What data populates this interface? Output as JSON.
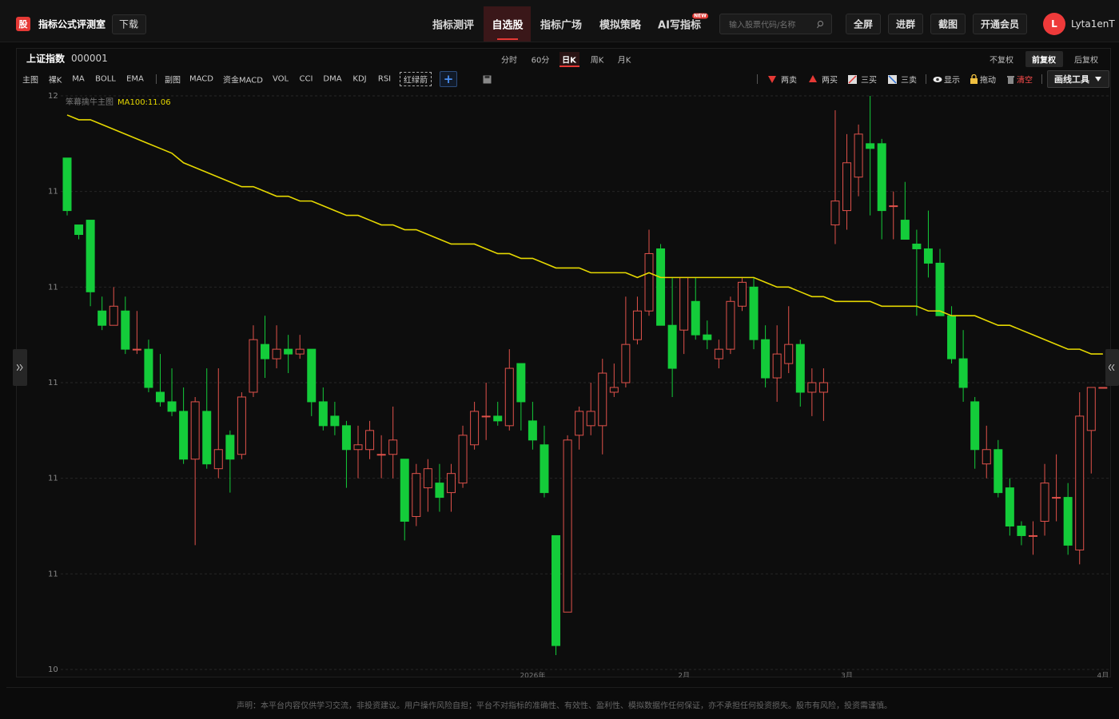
{
  "header": {
    "logo": "股",
    "app_name": "指标公式评测室",
    "download": "下载",
    "nav": [
      "指标测评",
      "自选股",
      "指标广场",
      "模拟策略",
      "AI写指标"
    ],
    "badge": "NEW",
    "search_placeholder": "输入股票代码/名称",
    "buttons": [
      "全屏",
      "进群",
      "截图",
      "开通会员"
    ],
    "avatar": "L",
    "user": "Lyta1enT"
  },
  "toolbar": {
    "symbol_name": "上证指数",
    "symbol_code": "000001",
    "periods": [
      "分时",
      "60分",
      "日K",
      "周K",
      "月K"
    ],
    "adjust": [
      "不复权",
      "前复权",
      "后复权"
    ],
    "main_label": "主图",
    "main": [
      "裸K",
      "MA",
      "BOLL",
      "EMA"
    ],
    "sub_label": "副图",
    "sub": [
      "MACD",
      "资金MACD",
      "VOL",
      "CCI",
      "DMA",
      "KDJ",
      "RSI",
      "红绿箭"
    ],
    "add": "+",
    "signals": [
      "两卖",
      "两买",
      "三买",
      "三卖"
    ],
    "tools": [
      "显示",
      "拖动",
      "清空"
    ],
    "draw_tools": "画线工具"
  },
  "chart_data": {
    "type": "candlestick",
    "indicator_name": "笨幕擒牛主图",
    "ma_label": "MA100:11.06",
    "ma_color": "#e6d800",
    "up_color": "#e0524b",
    "down_color": "#14cc3a",
    "grid": true,
    "ylim": [
      10.4,
      11.6
    ],
    "yticks": [
      {
        "value": 11.6,
        "label": "12"
      },
      {
        "value": 11.4,
        "label": "11"
      },
      {
        "value": 11.2,
        "label": "11"
      },
      {
        "value": 11.0,
        "label": "11"
      },
      {
        "value": 10.8,
        "label": "11"
      },
      {
        "value": 10.6,
        "label": "11"
      },
      {
        "value": 10.4,
        "label": "10"
      }
    ],
    "categories": [
      null,
      null,
      null,
      null,
      null,
      null,
      null,
      null,
      null,
      null,
      null,
      null,
      null,
      null,
      null,
      null,
      null,
      null,
      null,
      null,
      null,
      null,
      null,
      null,
      null,
      null,
      null,
      null,
      null,
      null,
      null,
      null,
      null,
      null,
      null,
      null,
      null,
      null,
      null,
      null,
      "2026年",
      null,
      null,
      null,
      null,
      null,
      null,
      null,
      null,
      null,
      null,
      null,
      null,
      "2月",
      null,
      null,
      null,
      null,
      null,
      null,
      null,
      null,
      null,
      null,
      null,
      null,
      null,
      "3月",
      null,
      null,
      null,
      null,
      null,
      null,
      null,
      null,
      null,
      null,
      null,
      null,
      null,
      null,
      null,
      null,
      null,
      null,
      null,
      null,
      null,
      "4月"
    ],
    "open": [
      11.47,
      11.33,
      11.34,
      11.15,
      11.12,
      11.15,
      11.07,
      11.07,
      10.98,
      10.96,
      10.94,
      10.84,
      10.94,
      10.82,
      10.89,
      10.85,
      10.98,
      11.08,
      11.05,
      11.07,
      11.06,
      11.07,
      10.96,
      10.93,
      10.91,
      10.86,
      10.86,
      10.85,
      10.85,
      10.84,
      10.72,
      10.78,
      10.79,
      10.77,
      10.79,
      10.87,
      10.93,
      10.93,
      10.91,
      11.04,
      10.92,
      10.87,
      10.68,
      10.52,
      10.89,
      10.91,
      10.91,
      10.98,
      11.0,
      11.09,
      11.15,
      11.28,
      11.12,
      11.11,
      11.17,
      11.1,
      11.05,
      11.07,
      11.16,
      11.2,
      11.09,
      11.01,
      11.04,
      11.08,
      10.98,
      10.98,
      11.33,
      11.36,
      11.43,
      11.5,
      11.5,
      11.37,
      11.34,
      11.29,
      11.28,
      11.25,
      11.14,
      11.05,
      10.96,
      10.83,
      10.86,
      10.78,
      10.7,
      10.68,
      10.71,
      10.76,
      10.76,
      10.65,
      10.9,
      10.99
    ],
    "close": [
      11.36,
      11.31,
      11.19,
      11.12,
      11.16,
      11.07,
      11.07,
      10.99,
      10.96,
      10.94,
      10.84,
      10.96,
      10.83,
      10.86,
      10.84,
      10.97,
      11.09,
      11.05,
      11.07,
      11.06,
      11.07,
      10.96,
      10.91,
      10.91,
      10.86,
      10.87,
      10.9,
      10.85,
      10.88,
      10.71,
      10.81,
      10.82,
      10.76,
      10.81,
      10.89,
      10.94,
      10.93,
      10.92,
      11.03,
      10.96,
      10.88,
      10.77,
      10.45,
      10.88,
      10.94,
      10.94,
      11.02,
      10.99,
      11.08,
      11.15,
      11.27,
      11.12,
      11.03,
      11.22,
      11.1,
      11.09,
      11.07,
      11.17,
      11.21,
      11.09,
      11.01,
      11.06,
      11.08,
      10.98,
      11.0,
      11.0,
      11.38,
      11.46,
      11.52,
      11.49,
      11.36,
      11.37,
      11.3,
      11.28,
      11.25,
      11.14,
      11.05,
      10.99,
      10.86,
      10.86,
      10.77,
      10.7,
      10.68,
      10.68,
      10.79,
      10.76,
      10.66,
      10.93,
      10.99,
      10.99
    ],
    "high": [
      11.47,
      11.33,
      11.34,
      11.18,
      11.2,
      11.18,
      11.15,
      11.09,
      11.06,
      11.03,
      10.99,
      10.97,
      11.03,
      11.03,
      10.9,
      10.98,
      11.12,
      11.14,
      11.12,
      11.1,
      11.1,
      11.07,
      10.99,
      10.96,
      10.92,
      10.91,
      10.92,
      10.89,
      10.95,
      10.84,
      10.83,
      10.84,
      10.83,
      10.83,
      10.91,
      10.96,
      11.0,
      10.96,
      11.07,
      11.04,
      10.96,
      10.91,
      10.68,
      10.89,
      10.95,
      11.0,
      11.05,
      11.04,
      11.18,
      11.18,
      11.32,
      11.29,
      11.22,
      11.22,
      11.22,
      11.13,
      11.09,
      11.18,
      11.22,
      11.22,
      11.12,
      11.12,
      11.16,
      11.09,
      11.03,
      11.03,
      11.57,
      11.52,
      11.54,
      11.6,
      11.51,
      11.4,
      11.42,
      11.32,
      11.36,
      11.28,
      11.16,
      11.11,
      10.97,
      10.91,
      10.88,
      10.8,
      10.71,
      10.71,
      10.83,
      10.85,
      10.79,
      10.98,
      10.99,
      10.99
    ],
    "low": [
      11.35,
      11.3,
      11.16,
      11.11,
      11.12,
      11.06,
      11.06,
      10.98,
      10.95,
      10.93,
      10.83,
      10.66,
      10.82,
      10.8,
      10.77,
      10.84,
      10.97,
      11.01,
      11.03,
      11.02,
      11.05,
      10.93,
      10.9,
      10.89,
      10.78,
      10.8,
      10.84,
      10.8,
      10.8,
      10.67,
      10.7,
      10.73,
      10.73,
      10.73,
      10.78,
      10.86,
      10.88,
      10.91,
      10.9,
      10.9,
      10.86,
      10.76,
      10.43,
      10.52,
      10.86,
      10.89,
      10.85,
      10.97,
      10.99,
      11.08,
      11.14,
      11.12,
      10.97,
      11.06,
      11.09,
      11.07,
      11.03,
      11.06,
      11.15,
      11.07,
      10.99,
      10.96,
      11.02,
      10.95,
      10.93,
      10.92,
      11.29,
      11.32,
      11.39,
      11.35,
      11.3,
      11.3,
      11.3,
      11.14,
      11.22,
      11.14,
      11.04,
      10.96,
      10.82,
      10.8,
      10.76,
      10.68,
      10.66,
      10.64,
      10.68,
      10.71,
      10.64,
      10.62,
      10.81,
      10.99
    ],
    "ma_values": [
      11.56,
      11.55,
      11.55,
      11.54,
      11.53,
      11.52,
      11.51,
      11.5,
      11.49,
      11.48,
      11.46,
      11.45,
      11.44,
      11.43,
      11.42,
      11.41,
      11.41,
      11.4,
      11.39,
      11.39,
      11.38,
      11.38,
      11.37,
      11.36,
      11.35,
      11.35,
      11.34,
      11.33,
      11.33,
      11.32,
      11.32,
      11.31,
      11.3,
      11.29,
      11.29,
      11.29,
      11.28,
      11.27,
      11.27,
      11.26,
      11.26,
      11.25,
      11.24,
      11.24,
      11.24,
      11.23,
      11.23,
      11.23,
      11.23,
      11.22,
      11.23,
      11.22,
      11.22,
      11.22,
      11.22,
      11.22,
      11.22,
      11.22,
      11.22,
      11.22,
      11.21,
      11.2,
      11.2,
      11.19,
      11.18,
      11.18,
      11.17,
      11.17,
      11.17,
      11.17,
      11.16,
      11.16,
      11.16,
      11.16,
      11.15,
      11.15,
      11.14,
      11.14,
      11.14,
      11.13,
      11.12,
      11.12,
      11.11,
      11.1,
      11.09,
      11.08,
      11.07,
      11.07,
      11.06,
      11.06
    ]
  },
  "footer": {
    "disclaimer": "声明：本平台内容仅供学习交流，非投资建议。用户操作风险自担；平台不对指标的准确性、有效性、盈利性、模拟数据作任何保证，亦不承担任何投资损失。股市有风险，投资需谨慎。"
  }
}
